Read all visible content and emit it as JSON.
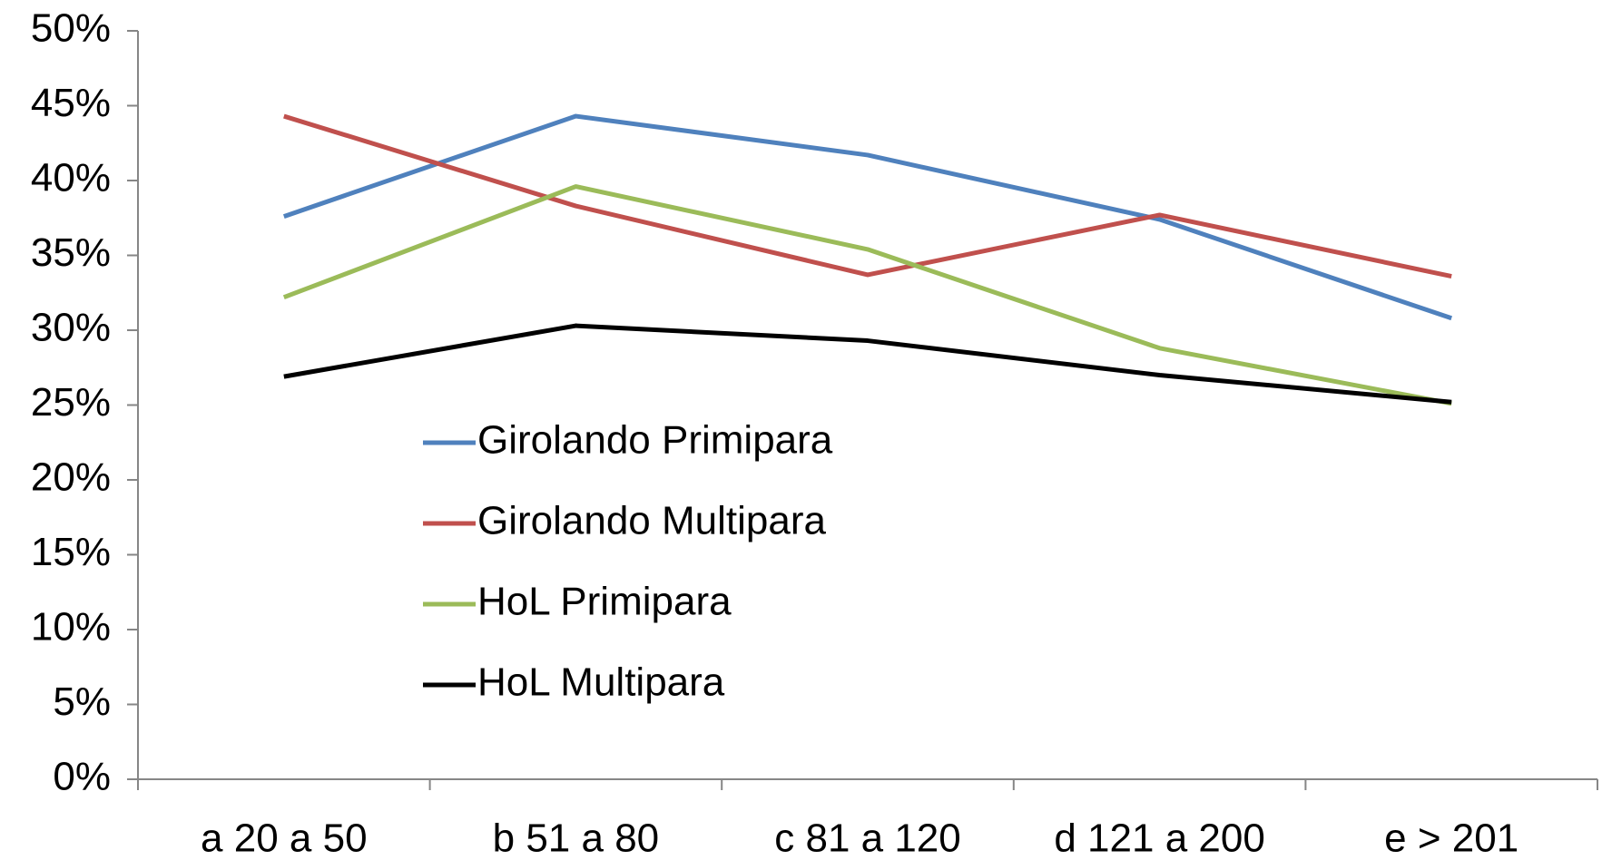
{
  "chart_data": {
    "type": "line",
    "categories": [
      "a 20 a 50",
      "b 51 a 80",
      "c 81 a 120",
      "d 121 a 200",
      "e > 201"
    ],
    "series": [
      {
        "name": "Girolando Primipara",
        "color": "#4f81bd",
        "values": [
          37.6,
          44.3,
          41.7,
          37.4,
          30.8
        ]
      },
      {
        "name": "Girolando Multipara",
        "color": "#c0504d",
        "values": [
          44.3,
          38.3,
          33.7,
          37.7,
          33.6
        ]
      },
      {
        "name": "HoL Primipara",
        "color": "#9bbb59",
        "values": [
          32.2,
          39.6,
          35.4,
          28.8,
          25.1
        ]
      },
      {
        "name": "HoL Multipara",
        "color": "#000000",
        "values": [
          26.9,
          30.3,
          29.3,
          27.0,
          25.2
        ]
      }
    ],
    "ylim": [
      0,
      50
    ],
    "yticks": [
      {
        "value": 0,
        "label": "0%"
      },
      {
        "value": 5,
        "label": "5%"
      },
      {
        "value": 10,
        "label": "10%"
      },
      {
        "value": 15,
        "label": "15%"
      },
      {
        "value": 20,
        "label": "20%"
      },
      {
        "value": 25,
        "label": "25%"
      },
      {
        "value": 30,
        "label": "30%"
      },
      {
        "value": 35,
        "label": "35%"
      },
      {
        "value": 40,
        "label": "40%"
      },
      {
        "value": 45,
        "label": "45%"
      },
      {
        "value": 50,
        "label": "50%"
      }
    ],
    "grid": false,
    "legend": "center"
  }
}
